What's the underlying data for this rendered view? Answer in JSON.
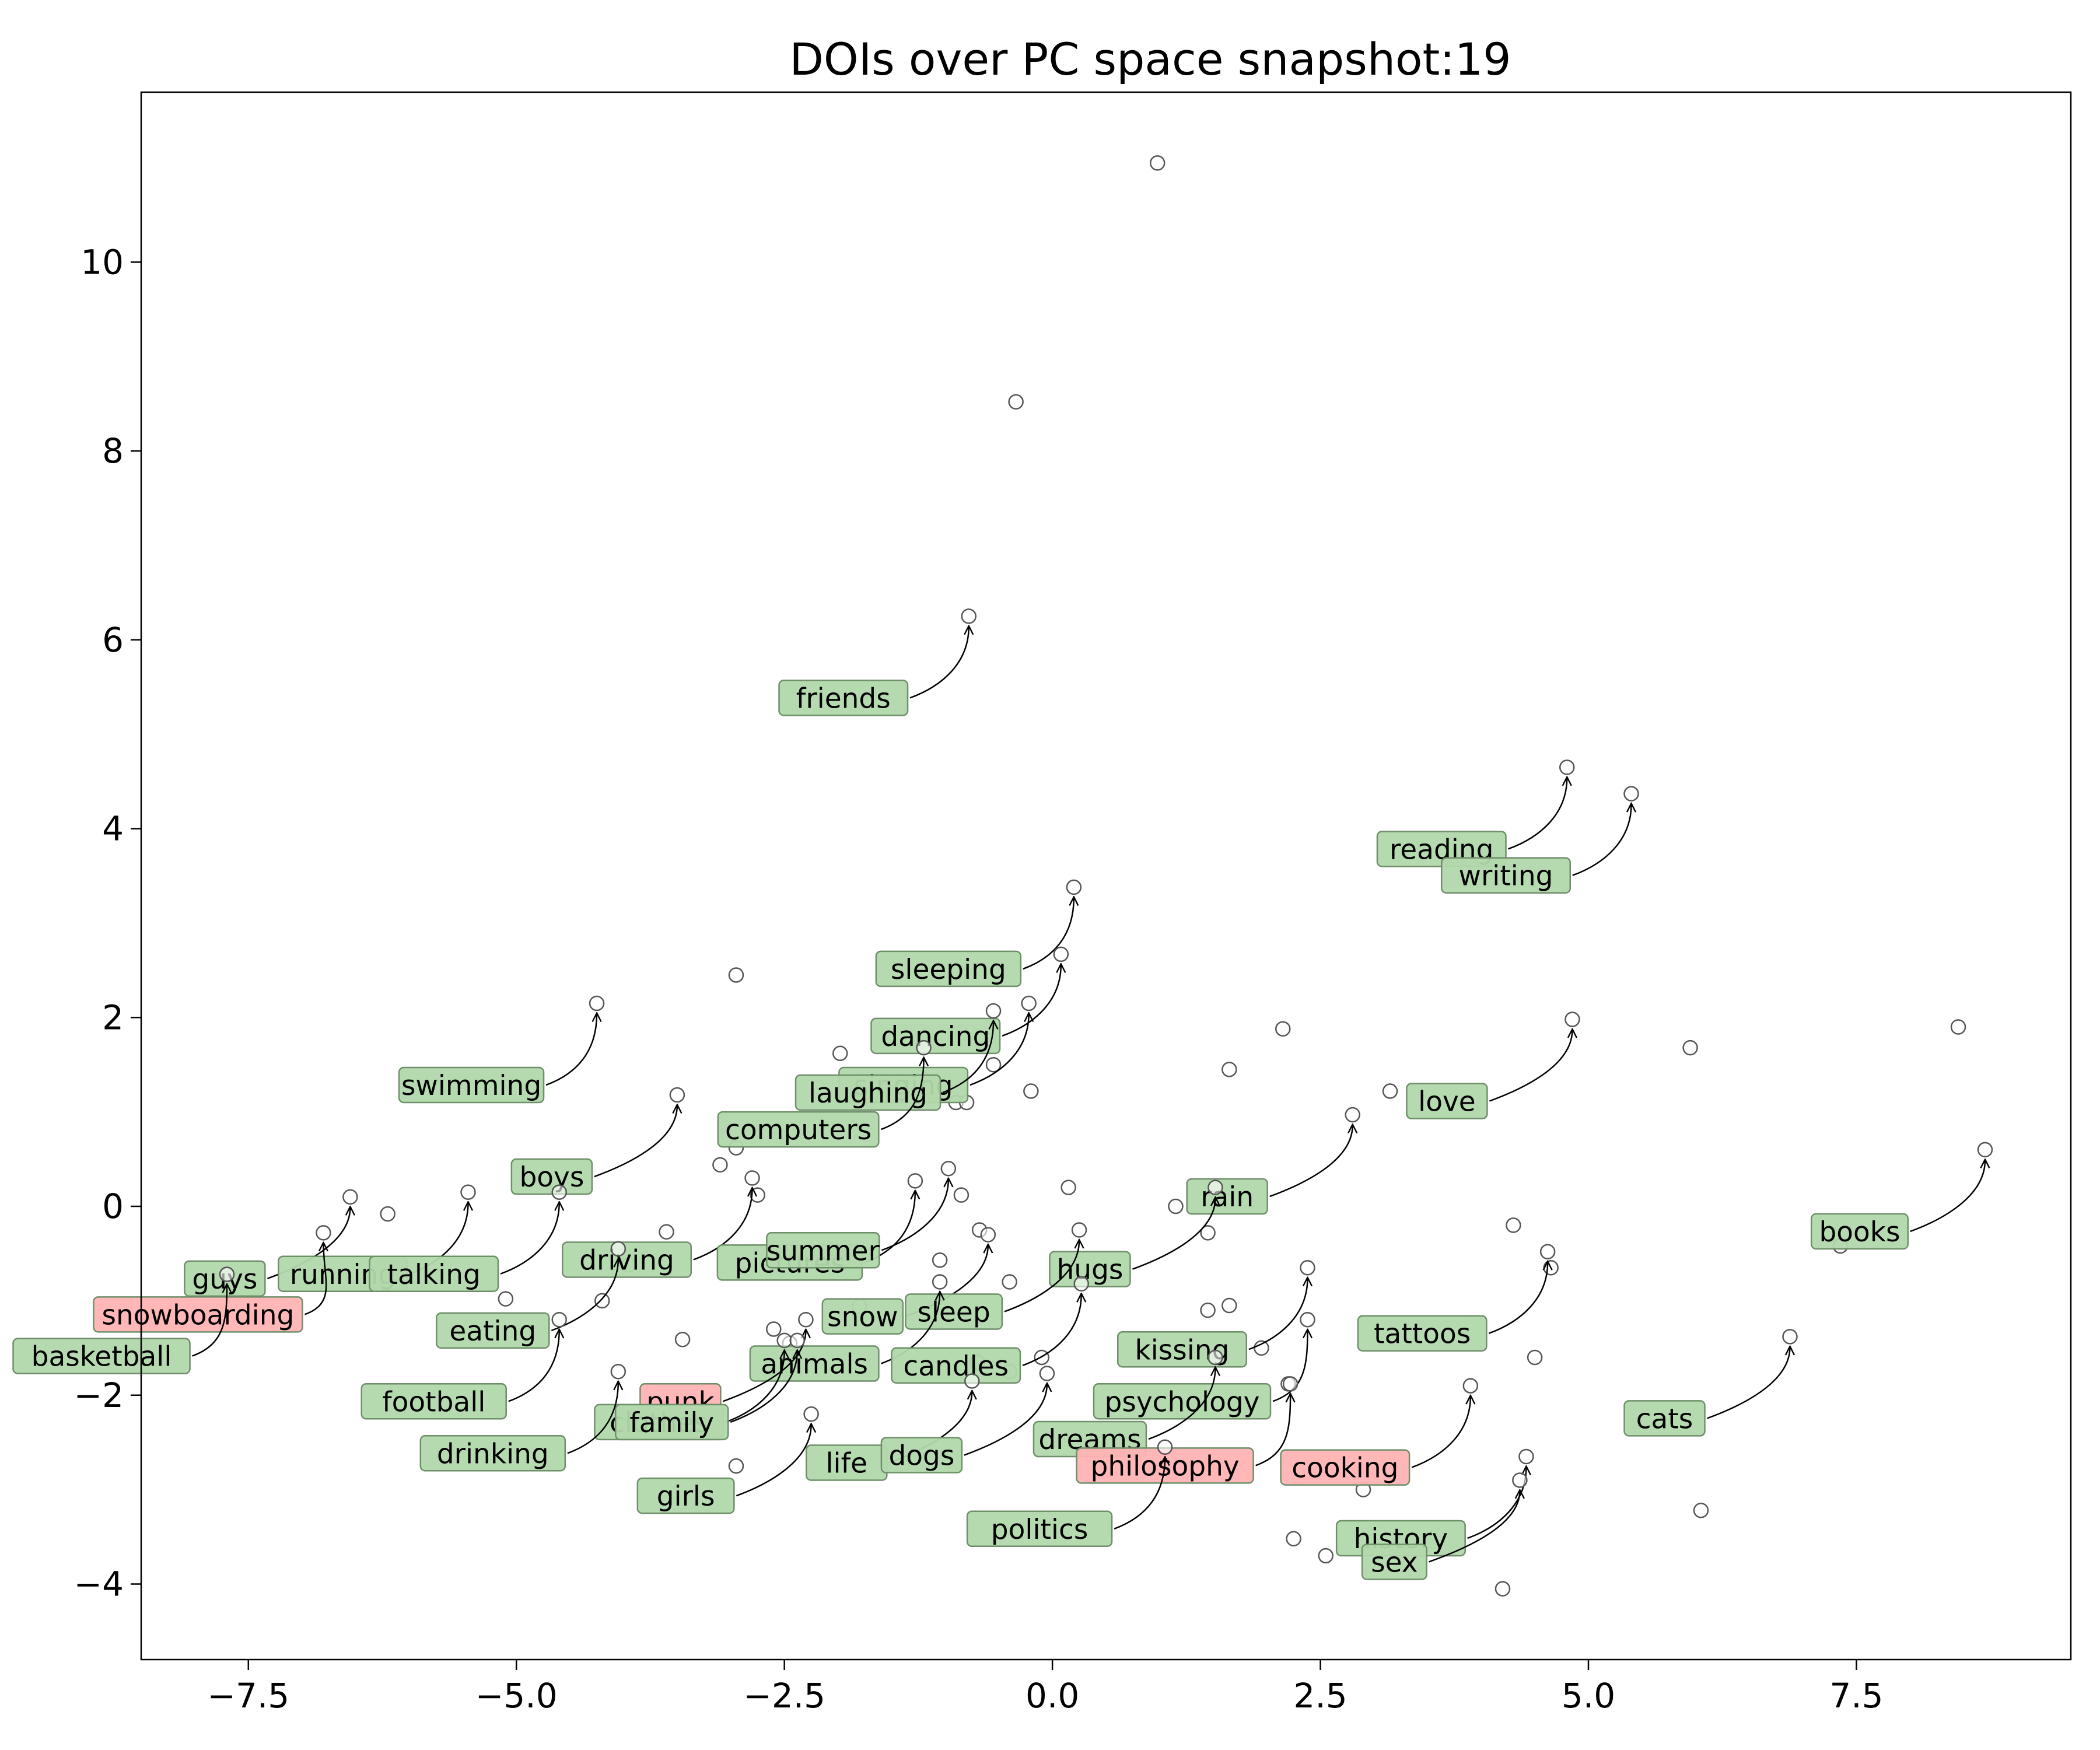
{
  "chart_data": {
    "type": "scatter",
    "title": "DOIs over PC space snapshot:19",
    "xlabel": "",
    "ylabel": "",
    "xlim": [
      -8.5,
      9.5
    ],
    "ylim": [
      -4.8,
      11.8
    ],
    "xticks": [
      -7.5,
      -5.0,
      -2.5,
      0.0,
      2.5,
      5.0,
      7.5
    ],
    "xtick_labels": [
      "−7.5",
      "−5.0",
      "−2.5",
      "0.0",
      "2.5",
      "5.0",
      "7.5"
    ],
    "yticks": [
      -4,
      -2,
      0,
      2,
      4,
      6,
      8,
      10
    ],
    "ytick_labels": [
      "−4",
      "−2",
      "0",
      "2",
      "4",
      "6",
      "8",
      "10"
    ],
    "grid": false,
    "colors": {
      "green_label": "#b2d8ac",
      "red_label": "#ffb3b3",
      "point_edge": "#555555"
    },
    "unlabeled_points": [
      [
        0.98,
        11.05
      ],
      [
        -0.34,
        8.52
      ],
      [
        -2.95,
        2.45
      ],
      [
        -1.98,
        1.62
      ],
      [
        2.15,
        1.88
      ],
      [
        1.65,
        1.45
      ],
      [
        5.95,
        1.68
      ],
      [
        8.45,
        1.9
      ],
      [
        3.15,
        1.22
      ],
      [
        -0.2,
        1.22
      ],
      [
        -0.55,
        1.5
      ],
      [
        -0.9,
        1.1
      ],
      [
        -2.95,
        0.62
      ],
      [
        -3.1,
        0.44
      ],
      [
        -2.75,
        0.12
      ],
      [
        -0.85,
        0.12
      ],
      [
        0.15,
        0.2
      ],
      [
        1.15,
        0.0
      ],
      [
        -6.2,
        -0.08
      ],
      [
        -3.6,
        -0.27
      ],
      [
        -0.68,
        -0.25
      ],
      [
        1.45,
        -0.28
      ],
      [
        4.3,
        -0.2
      ],
      [
        4.65,
        -0.65
      ],
      [
        -1.05,
        -0.57
      ],
      [
        -3.95,
        -0.62
      ],
      [
        -6.1,
        -0.78
      ],
      [
        -5.1,
        -0.98
      ],
      [
        -4.2,
        -1.0
      ],
      [
        -1.8,
        -1.06
      ],
      [
        -0.4,
        -0.8
      ],
      [
        1.45,
        -1.1
      ],
      [
        1.65,
        -1.05
      ],
      [
        -3.45,
        -1.41
      ],
      [
        -2.6,
        -1.3
      ],
      [
        -2.45,
        -1.45
      ],
      [
        -0.7,
        -1.65
      ],
      [
        -0.4,
        -1.75
      ],
      [
        -0.1,
        -1.6
      ],
      [
        1.95,
        -1.5
      ],
      [
        2.2,
        -1.88
      ],
      [
        4.5,
        -1.6
      ],
      [
        -2.95,
        -2.75
      ],
      [
        2.9,
        -3.0
      ],
      [
        2.25,
        -3.52
      ],
      [
        2.55,
        -3.7
      ],
      [
        4.2,
        -4.05
      ],
      [
        6.05,
        -3.22
      ],
      [
        7.35,
        -0.42
      ],
      [
        -0.8,
        1.1
      ]
    ],
    "labeled_points": [
      {
        "label": "friends",
        "x": -0.78,
        "y": 6.25,
        "color": "green"
      },
      {
        "label": "reading",
        "x": 4.8,
        "y": 4.65,
        "color": "green"
      },
      {
        "label": "writing",
        "x": 5.4,
        "y": 4.37,
        "color": "green"
      },
      {
        "label": "sleeping",
        "x": 0.2,
        "y": 3.38,
        "color": "green"
      },
      {
        "label": "dancing",
        "x": 0.08,
        "y": 2.67,
        "color": "green"
      },
      {
        "label": "singing",
        "x": -0.22,
        "y": 2.15,
        "color": "green"
      },
      {
        "label": "laughing",
        "x": -0.55,
        "y": 2.07,
        "color": "green"
      },
      {
        "label": "computers",
        "x": -1.2,
        "y": 1.68,
        "color": "green"
      },
      {
        "label": "swimming",
        "x": -4.25,
        "y": 2.15,
        "color": "green"
      },
      {
        "label": "love",
        "x": 4.85,
        "y": 1.98,
        "color": "green"
      },
      {
        "label": "boys",
        "x": -3.5,
        "y": 1.18,
        "color": "green"
      },
      {
        "label": "rain",
        "x": 2.8,
        "y": 0.97,
        "color": "green"
      },
      {
        "label": "books",
        "x": 8.7,
        "y": 0.6,
        "color": "green"
      },
      {
        "label": "guys",
        "x": -6.55,
        "y": 0.1,
        "color": "green"
      },
      {
        "label": "running",
        "x": -5.45,
        "y": 0.15,
        "color": "green"
      },
      {
        "label": "talking",
        "x": -4.6,
        "y": 0.15,
        "color": "green"
      },
      {
        "label": "driving",
        "x": -2.8,
        "y": 0.3,
        "color": "green"
      },
      {
        "label": "pictures",
        "x": -1.28,
        "y": 0.27,
        "color": "green"
      },
      {
        "label": "summer",
        "x": -0.97,
        "y": 0.4,
        "color": "green"
      },
      {
        "label": "hugs",
        "x": 1.52,
        "y": 0.2,
        "color": "green"
      },
      {
        "label": "snowboarding",
        "x": -6.8,
        "y": -0.28,
        "color": "red"
      },
      {
        "label": "basketball",
        "x": -7.7,
        "y": -0.72,
        "color": "green"
      },
      {
        "label": "eating",
        "x": -4.05,
        "y": -0.45,
        "color": "green"
      },
      {
        "label": "snow",
        "x": -0.6,
        "y": -0.3,
        "color": "green"
      },
      {
        "label": "sleep",
        "x": 0.25,
        "y": -0.25,
        "color": "green"
      },
      {
        "label": "tattoos",
        "x": 4.62,
        "y": -0.48,
        "color": "green"
      },
      {
        "label": "kissing",
        "x": 2.38,
        "y": -0.65,
        "color": "green"
      },
      {
        "label": "football",
        "x": -4.6,
        "y": -1.2,
        "color": "green"
      },
      {
        "label": "animals",
        "x": -1.05,
        "y": -0.8,
        "color": "green"
      },
      {
        "label": "candles",
        "x": 0.27,
        "y": -0.82,
        "color": "green"
      },
      {
        "label": "psychology",
        "x": 2.38,
        "y": -1.2,
        "color": "green"
      },
      {
        "label": "punk",
        "x": -2.3,
        "y": -1.2,
        "color": "red"
      },
      {
        "label": "clothes",
        "x": -2.5,
        "y": -1.42,
        "color": "green"
      },
      {
        "label": "family",
        "x": -2.38,
        "y": -1.42,
        "color": "green"
      },
      {
        "label": "dreams",
        "x": 1.52,
        "y": -1.6,
        "color": "green"
      },
      {
        "label": "cats",
        "x": 6.88,
        "y": -1.38,
        "color": "green"
      },
      {
        "label": "drinking",
        "x": -4.05,
        "y": -1.75,
        "color": "green"
      },
      {
        "label": "life",
        "x": -0.75,
        "y": -1.85,
        "color": "green"
      },
      {
        "label": "dogs",
        "x": -0.05,
        "y": -1.77,
        "color": "green"
      },
      {
        "label": "philosophy",
        "x": 2.22,
        "y": -1.88,
        "color": "red"
      },
      {
        "label": "cooking",
        "x": 3.9,
        "y": -1.9,
        "color": "red"
      },
      {
        "label": "girls",
        "x": -2.25,
        "y": -2.2,
        "color": "green"
      },
      {
        "label": "politics",
        "x": 1.05,
        "y": -2.55,
        "color": "green"
      },
      {
        "label": "history",
        "x": 4.42,
        "y": -2.65,
        "color": "green"
      },
      {
        "label": "sex",
        "x": 4.36,
        "y": -2.9,
        "color": "green"
      }
    ]
  }
}
